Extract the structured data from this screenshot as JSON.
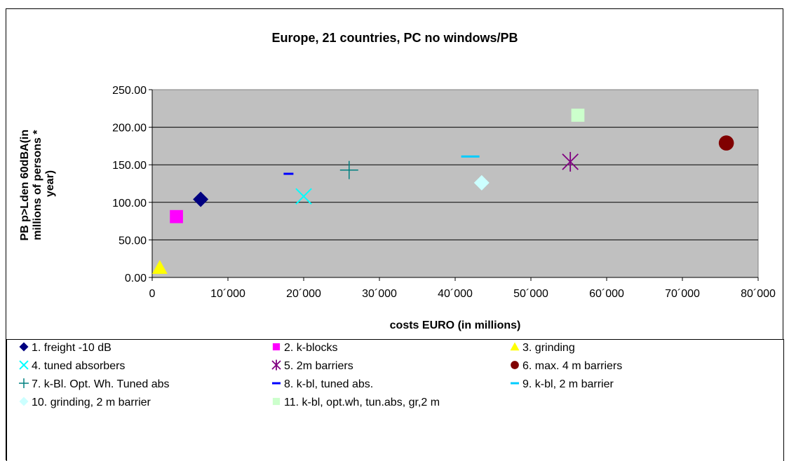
{
  "chart_data": {
    "type": "scatter",
    "title": "Europe, 21 countries, PC no windows/PB",
    "xlabel": "costs EURO (in millions)",
    "ylabel_lines": [
      "PB  p>Lden 60dBA(in",
      "millions of persons *",
      "year)"
    ],
    "xlim": [
      0,
      80000
    ],
    "ylim": [
      0,
      250
    ],
    "x_ticks": [
      "0",
      "10´000",
      "20´000",
      "30´000",
      "40´000",
      "50´000",
      "60´000",
      "70´000",
      "80´000"
    ],
    "y_ticks": [
      "0.00",
      "50.00",
      "100.00",
      "150.00",
      "200.00",
      "250.00"
    ],
    "grid": "horizontal",
    "plot_background": "#c0c0c0",
    "legend_position": "bottom",
    "series": [
      {
        "name": "1. freight -10 dB",
        "marker": "diamond",
        "color": "#000080",
        "points": [
          [
            6400,
            104
          ]
        ]
      },
      {
        "name": "2. k-blocks",
        "marker": "square",
        "color": "#ff00ff",
        "points": [
          [
            3200,
            81
          ]
        ]
      },
      {
        "name": "3. grinding",
        "marker": "triangle",
        "color": "#ffff00",
        "points": [
          [
            1000,
            13
          ]
        ]
      },
      {
        "name": "4. tuned absorbers",
        "marker": "x",
        "color": "#00ffff",
        "points": [
          [
            20000,
            108
          ]
        ]
      },
      {
        "name": "5. 2m barriers",
        "marker": "asterisk",
        "color": "#800080",
        "points": [
          [
            55200,
            154
          ]
        ]
      },
      {
        "name": "6. max. 4 m barriers",
        "marker": "circle",
        "color": "#800000",
        "points": [
          [
            75800,
            179
          ]
        ]
      },
      {
        "name": "7. k-Bl. Opt. Wh. Tuned abs",
        "marker": "plus",
        "color": "#008080",
        "points": [
          [
            26000,
            143
          ]
        ]
      },
      {
        "name": "8. k-bl, tuned abs.",
        "marker": "dash",
        "color": "#0000ff",
        "points": [
          [
            18000,
            138
          ]
        ]
      },
      {
        "name": "9. k-bl, 2 m barrier",
        "marker": "dash",
        "color": "#00ccff",
        "points": [
          [
            42000,
            161
          ]
        ]
      },
      {
        "name": "10. grinding, 2 m barrier",
        "marker": "diamond",
        "color": "#ccffff",
        "points": [
          [
            43500,
            126
          ]
        ]
      },
      {
        "name": "11. k-bl, opt.wh, tun.abs, gr,2 m",
        "marker": "square",
        "color": "#ccffcc",
        "points": [
          [
            56200,
            216
          ]
        ]
      }
    ]
  }
}
